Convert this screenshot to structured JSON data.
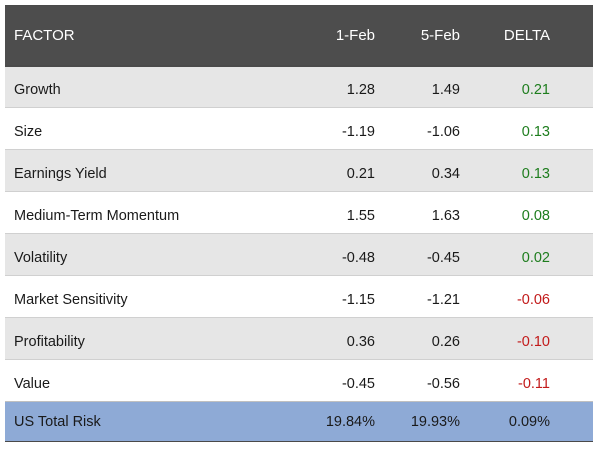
{
  "header": {
    "factor": "FACTOR",
    "date1": "1-Feb",
    "date2": "5-Feb",
    "delta": "DELTA"
  },
  "rows": [
    {
      "factor": "Growth",
      "feb1": "1.28",
      "feb5": "1.49",
      "delta": "0.21",
      "sign": "pos"
    },
    {
      "factor": "Size",
      "feb1": "-1.19",
      "feb5": "-1.06",
      "delta": "0.13",
      "sign": "pos"
    },
    {
      "factor": "Earnings Yield",
      "feb1": "0.21",
      "feb5": "0.34",
      "delta": "0.13",
      "sign": "pos"
    },
    {
      "factor": "Medium-Term Momentum",
      "feb1": "1.55",
      "feb5": "1.63",
      "delta": "0.08",
      "sign": "pos"
    },
    {
      "factor": "Volatility",
      "feb1": "-0.48",
      "feb5": "-0.45",
      "delta": "0.02",
      "sign": "pos"
    },
    {
      "factor": "Market Sensitivity",
      "feb1": "-1.15",
      "feb5": "-1.21",
      "delta": "-0.06",
      "sign": "neg"
    },
    {
      "factor": "Profitability",
      "feb1": "0.36",
      "feb5": "0.26",
      "delta": "-0.10",
      "sign": "neg"
    },
    {
      "factor": "Value",
      "feb1": "-0.45",
      "feb5": "-0.56",
      "delta": "-0.11",
      "sign": "neg"
    }
  ],
  "total": {
    "label": "US Total Risk",
    "feb1": "19.84%",
    "feb5": "19.93%",
    "delta": "0.09%"
  },
  "colors": {
    "header_bg": "#4d4d4d",
    "shaded_row": "#e6e6e6",
    "total_bg": "#8eaad6",
    "positive": "#1e7d1e",
    "negative": "#c21a1a"
  }
}
